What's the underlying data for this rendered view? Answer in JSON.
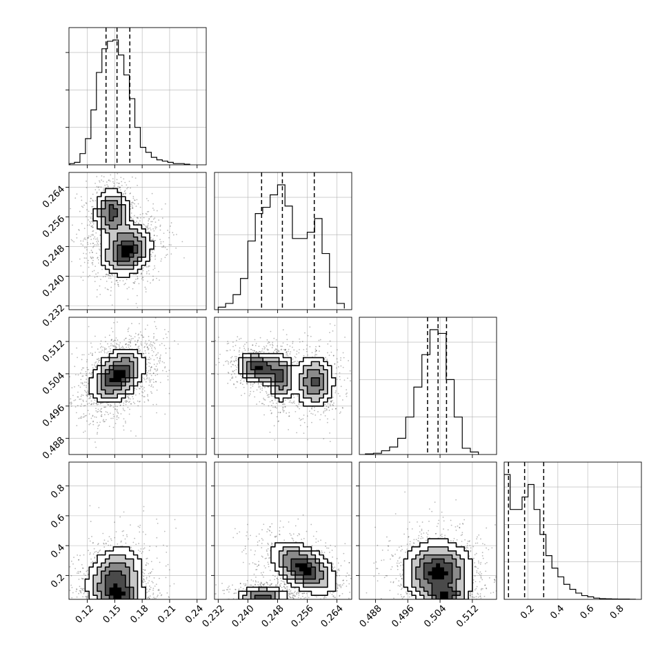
{
  "chart_data": {
    "type": "corner",
    "parameters": 4,
    "axes": [
      {
        "range": [
          0.1,
          0.25
        ],
        "ticks": [
          0.12,
          0.15,
          0.18,
          0.21,
          0.24
        ],
        "tick_labels": [
          "0.12",
          "0.15",
          "0.18",
          "0.21",
          "0.24"
        ]
      },
      {
        "range": [
          0.231,
          0.268
        ],
        "ticks": [
          0.232,
          0.24,
          0.248,
          0.256,
          0.264
        ],
        "tick_labels": [
          "0.232",
          "0.240",
          "0.248",
          "0.256",
          "0.264"
        ]
      },
      {
        "range": [
          0.484,
          0.518
        ],
        "ticks": [
          0.488,
          0.496,
          0.504,
          0.512
        ],
        "tick_labels": [
          "0.488",
          "0.496",
          "0.504",
          "0.512"
        ]
      },
      {
        "range": [
          0.04,
          0.96
        ],
        "ticks": [
          0.2,
          0.4,
          0.6,
          0.8
        ],
        "tick_labels": [
          "0.2",
          "0.4",
          "0.6",
          "0.8"
        ]
      }
    ],
    "histograms": [
      {
        "param": 0,
        "quantiles": [
          0.1405,
          0.1525,
          0.1665
        ],
        "peak": 0.153,
        "bins": [
          0.101,
          0.106,
          0.112,
          0.118,
          0.124,
          0.13,
          0.136,
          0.142,
          0.148,
          0.154,
          0.16,
          0.166,
          0.172,
          0.178,
          0.184,
          0.19,
          0.196,
          0.202,
          0.208,
          0.214,
          0.22,
          0.226,
          0.232
        ],
        "counts": [
          0.01,
          0.02,
          0.09,
          0.21,
          0.44,
          0.74,
          0.93,
          0.99,
          1.0,
          0.88,
          0.72,
          0.53,
          0.3,
          0.14,
          0.1,
          0.06,
          0.04,
          0.03,
          0.02,
          0.01,
          0.01,
          0.005
        ]
      },
      {
        "param": 1,
        "quantiles": [
          0.2437,
          0.2493,
          0.2579
        ],
        "peak": 0.249,
        "bins": [
          0.232,
          0.234,
          0.236,
          0.238,
          0.24,
          0.242,
          0.244,
          0.246,
          0.248,
          0.25,
          0.252,
          0.254,
          0.256,
          0.258,
          0.26,
          0.262,
          0.264,
          0.266
        ],
        "counts": [
          0.02,
          0.05,
          0.12,
          0.25,
          0.55,
          0.77,
          0.82,
          0.92,
          1.0,
          0.83,
          0.57,
          0.57,
          0.62,
          0.73,
          0.45,
          0.18,
          0.05,
          0.01
        ]
      },
      {
        "param": 2,
        "quantiles": [
          0.5009,
          0.5035,
          0.5056
        ],
        "peak": 0.5036,
        "bins": [
          0.4855,
          0.4875,
          0.4895,
          0.4915,
          0.4935,
          0.4955,
          0.4975,
          0.4995,
          0.5015,
          0.5035,
          0.5055,
          0.5075,
          0.5095,
          0.5115,
          0.5135
        ],
        "counts": [
          0.005,
          0.01,
          0.03,
          0.06,
          0.13,
          0.3,
          0.54,
          0.8,
          1.0,
          0.97,
          0.6,
          0.3,
          0.05,
          0.02
        ]
      },
      {
        "param": 3,
        "quantiles": [
          0.069,
          0.177,
          0.305
        ],
        "peak": 0.08,
        "bins": [
          0.04,
          0.08,
          0.12,
          0.16,
          0.2,
          0.24,
          0.28,
          0.32,
          0.36,
          0.4,
          0.44,
          0.48,
          0.52,
          0.56,
          0.6,
          0.64,
          0.68,
          0.72,
          0.76,
          0.8,
          0.84,
          0.88,
          0.92
        ],
        "counts": [
          1.0,
          0.72,
          0.72,
          0.82,
          0.92,
          0.72,
          0.52,
          0.35,
          0.25,
          0.18,
          0.12,
          0.08,
          0.05,
          0.03,
          0.02,
          0.01,
          0.006,
          0.004,
          0.003,
          0.002,
          0.002,
          0.001
        ]
      }
    ],
    "joint": [
      {
        "x": 0,
        "y": 1,
        "modes": [
          {
            "cx": 0.147,
            "cy": 0.257,
            "sx": 0.01,
            "sy": 0.0035,
            "w": 0.45,
            "rho": 0
          },
          {
            "cx": 0.163,
            "cy": 0.247,
            "sx": 0.014,
            "sy": 0.0035,
            "w": 0.55,
            "rho": 0.2
          }
        ]
      },
      {
        "x": 0,
        "y": 2,
        "modes": [
          {
            "cx": 0.153,
            "cy": 0.5035,
            "sx": 0.015,
            "sy": 0.0035,
            "w": 1.0,
            "rho": 0.4
          }
        ]
      },
      {
        "x": 1,
        "y": 2,
        "modes": [
          {
            "cx": 0.243,
            "cy": 0.5055,
            "sx": 0.003,
            "sy": 0.002,
            "w": 0.4,
            "rho": -0.2
          },
          {
            "cx": 0.249,
            "cy": 0.503,
            "sx": 0.0018,
            "sy": 0.003,
            "w": 0.3,
            "rho": 0
          },
          {
            "cx": 0.258,
            "cy": 0.502,
            "sx": 0.0028,
            "sy": 0.0035,
            "w": 0.3,
            "rho": 0
          }
        ]
      },
      {
        "x": 0,
        "y": 3,
        "modes": [
          {
            "cx": 0.15,
            "cy": 0.18,
            "sx": 0.016,
            "sy": 0.11,
            "w": 0.6,
            "rho": 0.2
          },
          {
            "cx": 0.158,
            "cy": 0.06,
            "sx": 0.014,
            "sy": 0.05,
            "w": 0.4,
            "rho": 0
          }
        ]
      },
      {
        "x": 1,
        "y": 3,
        "modes": [
          {
            "cx": 0.255,
            "cy": 0.25,
            "sx": 0.0045,
            "sy": 0.09,
            "w": 0.55,
            "rho": -0.5
          },
          {
            "cx": 0.244,
            "cy": 0.06,
            "sx": 0.0035,
            "sy": 0.035,
            "w": 0.45,
            "rho": 0
          }
        ]
      },
      {
        "x": 2,
        "y": 3,
        "modes": [
          {
            "cx": 0.5035,
            "cy": 0.22,
            "sx": 0.0045,
            "sy": 0.11,
            "w": 0.6,
            "rho": 0
          },
          {
            "cx": 0.5055,
            "cy": 0.06,
            "sx": 0.0025,
            "sy": 0.04,
            "w": 0.4,
            "rho": 0
          }
        ]
      }
    ],
    "grid": true
  }
}
